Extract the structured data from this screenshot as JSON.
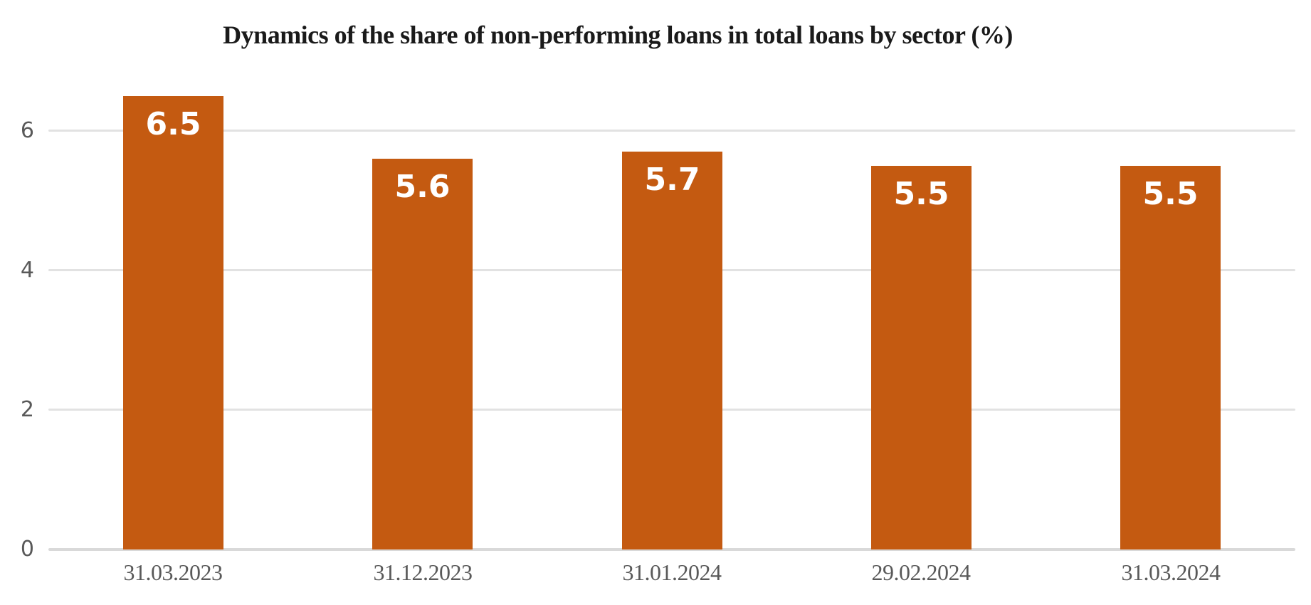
{
  "page": {
    "background": "#ffffff"
  },
  "chart_data": {
    "type": "bar",
    "title": "Dynamics of the share of non-performing loans in total loans by sector (%)",
    "categories": [
      "31.03.2023",
      "31.12.2023",
      "31.01.2024",
      "29.02.2024",
      "31.03.2024"
    ],
    "values": [
      6.5,
      5.6,
      5.7,
      5.5,
      5.5
    ],
    "value_labels": [
      "6.5",
      "5.6",
      "5.7",
      "5.5",
      "5.5"
    ],
    "xlabel": "",
    "ylabel": "",
    "ylim": [
      0,
      7
    ],
    "yticks": [
      0,
      2,
      4,
      6
    ],
    "ytick_labels": [
      "0",
      "2",
      "4",
      "6"
    ],
    "grid": "horizontal-only",
    "legend": "none",
    "value_labels_position": "inside-top",
    "bar_color": "#c45a11",
    "value_label_color": "#ffffff",
    "gridline_color": "#e2e2e2",
    "axis_line_color": "#d9d9d9",
    "tick_label_color": "#595959",
    "title_color": "#1a1a1a"
  }
}
